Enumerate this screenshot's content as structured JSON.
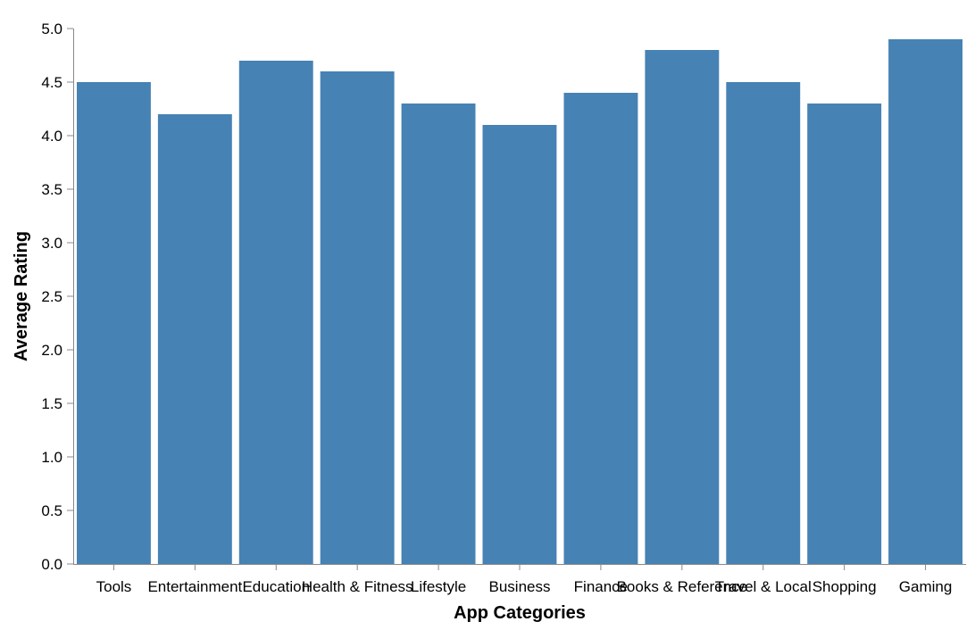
{
  "chart_data": {
    "type": "bar",
    "title": "",
    "xlabel": "App Categories",
    "ylabel": "Average Rating",
    "categories": [
      "Tools",
      "Entertainment",
      "Education",
      "Health & Fitness",
      "Lifestyle",
      "Business",
      "Finance",
      "Books & Reference",
      "Travel & Local",
      "Shopping",
      "Gaming"
    ],
    "values": [
      4.5,
      4.2,
      4.7,
      4.6,
      4.3,
      4.1,
      4.4,
      4.8,
      4.5,
      4.3,
      4.9
    ],
    "ylim": [
      0,
      5
    ],
    "yticks": [
      "0.0",
      "0.5",
      "1.0",
      "1.5",
      "2.0",
      "2.5",
      "3.0",
      "3.5",
      "4.0",
      "4.5",
      "5.0"
    ],
    "grid": false,
    "colors": {
      "bar": "#4682b4",
      "axis": "#888888"
    }
  }
}
